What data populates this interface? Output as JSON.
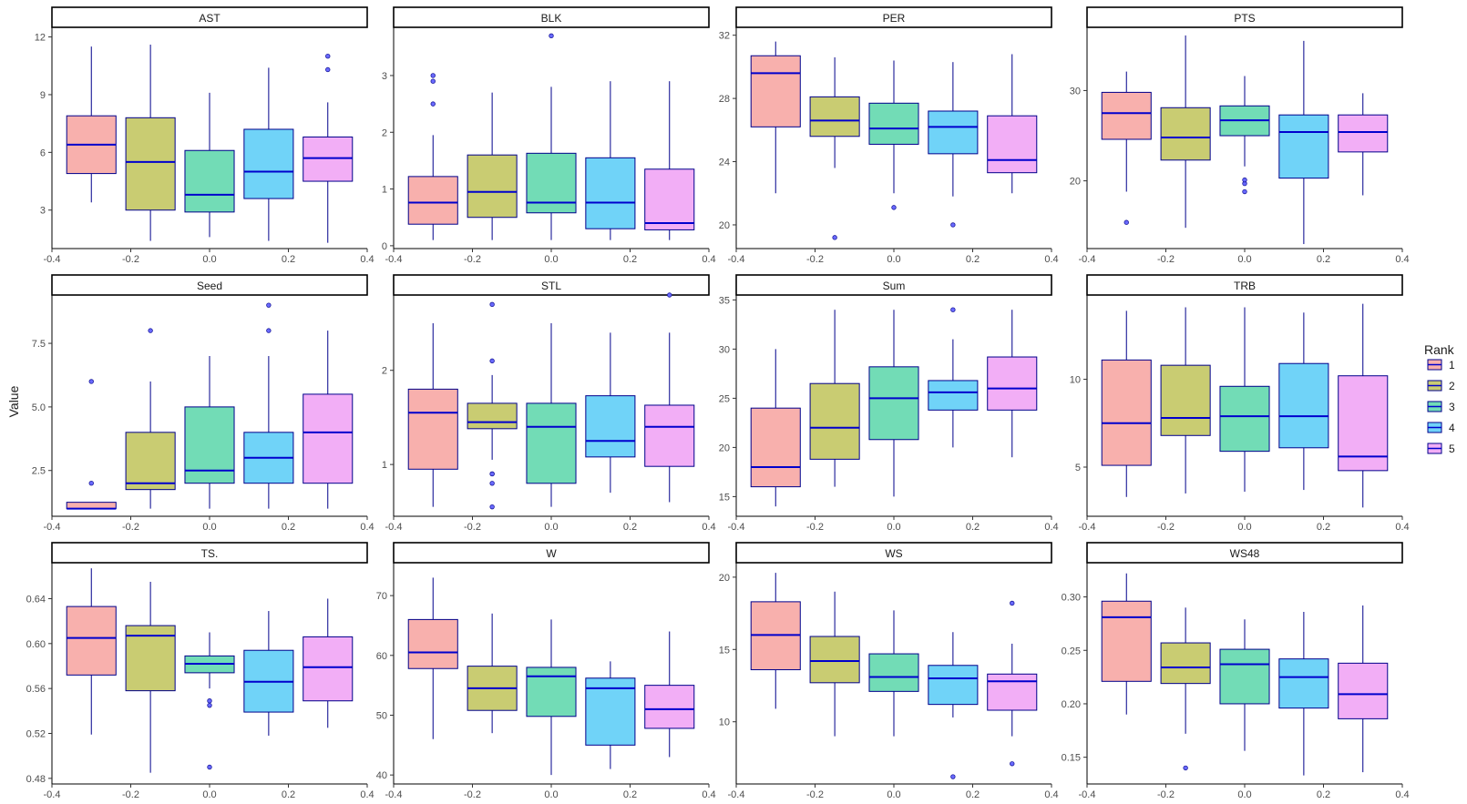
{
  "chart_data": {
    "type": "boxplot",
    "y_label": "Value",
    "x_ticks": [
      "-0.4",
      "-0.2",
      "0.0",
      "0.2",
      "0.4"
    ],
    "x_positions": [
      -0.3,
      -0.15,
      0,
      0.15,
      0.3
    ],
    "xlim": [
      -0.4,
      0.4
    ],
    "legend": {
      "title": "Rank",
      "entries": [
        {
          "label": "1",
          "color": "#f8b0ad"
        },
        {
          "label": "2",
          "color": "#c9cc72"
        },
        {
          "label": "3",
          "color": "#72dcb6"
        },
        {
          "label": "4",
          "color": "#70d3f8"
        },
        {
          "label": "5",
          "color": "#f2aef6"
        }
      ]
    },
    "panels": [
      {
        "title": "AST",
        "ylim": [
          1,
          12.5
        ],
        "ticks": [
          3,
          6,
          9,
          12
        ],
        "tick_labels": [
          "3",
          "6",
          "9",
          "12"
        ],
        "boxes": [
          {
            "min": 3.4,
            "q1": 4.9,
            "median": 6.4,
            "q3": 7.9,
            "max": 11.5,
            "outliers": []
          },
          {
            "min": 1.4,
            "q1": 3.0,
            "median": 5.5,
            "q3": 7.8,
            "max": 11.6,
            "outliers": []
          },
          {
            "min": 1.6,
            "q1": 2.9,
            "median": 3.8,
            "q3": 6.1,
            "max": 9.1,
            "outliers": []
          },
          {
            "min": 1.4,
            "q1": 3.6,
            "median": 5.0,
            "q3": 7.2,
            "max": 10.4,
            "outliers": []
          },
          {
            "min": 1.3,
            "q1": 4.5,
            "median": 5.7,
            "q3": 6.8,
            "max": 8.6,
            "outliers": [
              10.3,
              11.0
            ]
          }
        ]
      },
      {
        "title": "BLK",
        "ylim": [
          -0.05,
          3.85
        ],
        "ticks": [
          0,
          1,
          2,
          3
        ],
        "tick_labels": [
          "0",
          "1",
          "2",
          "3"
        ],
        "boxes": [
          {
            "min": 0.1,
            "q1": 0.38,
            "median": 0.76,
            "q3": 1.22,
            "max": 1.95,
            "outliers": [
              2.5,
              2.9,
              3.0
            ]
          },
          {
            "min": 0.1,
            "q1": 0.5,
            "median": 0.95,
            "q3": 1.6,
            "max": 2.7,
            "outliers": []
          },
          {
            "min": 0.1,
            "q1": 0.58,
            "median": 0.76,
            "q3": 1.63,
            "max": 2.8,
            "outliers": [
              3.7
            ]
          },
          {
            "min": 0.1,
            "q1": 0.3,
            "median": 0.76,
            "q3": 1.55,
            "max": 2.9,
            "outliers": []
          },
          {
            "min": 0.1,
            "q1": 0.28,
            "median": 0.4,
            "q3": 1.35,
            "max": 2.9,
            "outliers": []
          }
        ]
      },
      {
        "title": "PER",
        "ylim": [
          18.5,
          32.5
        ],
        "ticks": [
          20,
          24,
          28,
          32
        ],
        "tick_labels": [
          "20",
          "24",
          "28",
          "32"
        ],
        "boxes": [
          {
            "min": 22.0,
            "q1": 26.2,
            "median": 29.6,
            "q3": 30.7,
            "max": 31.6,
            "outliers": []
          },
          {
            "min": 23.6,
            "q1": 25.6,
            "median": 26.6,
            "q3": 28.1,
            "max": 30.6,
            "outliers": [
              19.2
            ]
          },
          {
            "min": 22.0,
            "q1": 25.1,
            "median": 26.1,
            "q3": 27.7,
            "max": 30.4,
            "outliers": [
              21.1
            ]
          },
          {
            "min": 21.8,
            "q1": 24.5,
            "median": 26.2,
            "q3": 27.2,
            "max": 30.3,
            "outliers": [
              20.0
            ]
          },
          {
            "min": 22.0,
            "q1": 23.3,
            "median": 24.1,
            "q3": 26.9,
            "max": 30.8,
            "outliers": []
          }
        ]
      },
      {
        "title": "PTS",
        "ylim": [
          12.5,
          37
        ],
        "ticks": [
          20,
          30
        ],
        "tick_labels": [
          "20",
          "30"
        ],
        "boxes": [
          {
            "min": 18.8,
            "q1": 24.6,
            "median": 27.5,
            "q3": 29.8,
            "max": 32.1,
            "outliers": [
              15.4
            ]
          },
          {
            "min": 14.8,
            "q1": 22.3,
            "median": 24.8,
            "q3": 28.1,
            "max": 36.1,
            "outliers": []
          },
          {
            "min": 21.6,
            "q1": 25.0,
            "median": 26.7,
            "q3": 28.3,
            "max": 31.6,
            "outliers": [
              18.8,
              19.7,
              20.1
            ]
          },
          {
            "min": 13.0,
            "q1": 20.3,
            "median": 25.4,
            "q3": 27.3,
            "max": 35.5,
            "outliers": []
          },
          {
            "min": 18.4,
            "q1": 23.2,
            "median": 25.4,
            "q3": 27.3,
            "max": 29.7,
            "outliers": []
          }
        ]
      },
      {
        "title": "Seed",
        "ylim": [
          0.7,
          9.4
        ],
        "ticks": [
          2.5,
          5,
          7.5
        ],
        "tick_labels": [
          "2.5",
          "5.0",
          "7.5"
        ],
        "boxes": [
          {
            "min": 1,
            "q1": 1,
            "median": 1,
            "q3": 1.25,
            "max": 1.25,
            "outliers": [
              2,
              6
            ]
          },
          {
            "min": 1,
            "q1": 1.75,
            "median": 2,
            "q3": 4,
            "max": 6,
            "outliers": [
              8
            ]
          },
          {
            "min": 1,
            "q1": 2,
            "median": 2.5,
            "q3": 5,
            "max": 7,
            "outliers": []
          },
          {
            "min": 1,
            "q1": 2,
            "median": 3,
            "q3": 4,
            "max": 7,
            "outliers": [
              8,
              9
            ]
          },
          {
            "min": 1,
            "q1": 2,
            "median": 4,
            "q3": 5.5,
            "max": 8,
            "outliers": []
          }
        ]
      },
      {
        "title": "STL",
        "ylim": [
          0.45,
          2.8
        ],
        "ticks": [
          1,
          2
        ],
        "tick_labels": [
          "1",
          "2"
        ],
        "boxes": [
          {
            "min": 0.55,
            "q1": 0.95,
            "median": 1.55,
            "q3": 1.8,
            "max": 2.5,
            "outliers": []
          },
          {
            "min": 1.05,
            "q1": 1.38,
            "median": 1.45,
            "q3": 1.65,
            "max": 1.95,
            "outliers": [
              0.55,
              0.8,
              0.9,
              0.9,
              2.1,
              2.7
            ]
          },
          {
            "min": 0.55,
            "q1": 0.8,
            "median": 1.4,
            "q3": 1.65,
            "max": 2.5,
            "outliers": []
          },
          {
            "min": 0.7,
            "q1": 1.08,
            "median": 1.25,
            "q3": 1.73,
            "max": 2.4,
            "outliers": []
          },
          {
            "min": 0.6,
            "q1": 0.98,
            "median": 1.4,
            "q3": 1.63,
            "max": 2.4,
            "outliers": [
              2.8
            ]
          }
        ]
      },
      {
        "title": "Sum",
        "ylim": [
          13,
          35.5
        ],
        "ticks": [
          15,
          20,
          25,
          30,
          35
        ],
        "tick_labels": [
          "15",
          "20",
          "25",
          "30",
          "35"
        ],
        "boxes": [
          {
            "min": 14,
            "q1": 16,
            "median": 18,
            "q3": 24,
            "max": 30,
            "outliers": []
          },
          {
            "min": 16,
            "q1": 18.8,
            "median": 22,
            "q3": 26.5,
            "max": 34,
            "outliers": []
          },
          {
            "min": 15,
            "q1": 20.8,
            "median": 25,
            "q3": 28.2,
            "max": 34,
            "outliers": []
          },
          {
            "min": 20,
            "q1": 23.8,
            "median": 25.6,
            "q3": 26.8,
            "max": 31,
            "outliers": [
              34
            ]
          },
          {
            "min": 19,
            "q1": 23.8,
            "median": 26,
            "q3": 29.2,
            "max": 34,
            "outliers": []
          }
        ]
      },
      {
        "title": "TRB",
        "ylim": [
          2.2,
          14.8
        ],
        "ticks": [
          5,
          10
        ],
        "tick_labels": [
          "5",
          "10"
        ],
        "boxes": [
          {
            "min": 3.3,
            "q1": 5.1,
            "median": 7.5,
            "q3": 11.1,
            "max": 13.9,
            "outliers": []
          },
          {
            "min": 3.5,
            "q1": 6.8,
            "median": 7.8,
            "q3": 10.8,
            "max": 14.1,
            "outliers": []
          },
          {
            "min": 3.6,
            "q1": 5.9,
            "median": 7.9,
            "q3": 9.6,
            "max": 14.1,
            "outliers": []
          },
          {
            "min": 3.7,
            "q1": 6.1,
            "median": 7.9,
            "q3": 10.9,
            "max": 13.8,
            "outliers": []
          },
          {
            "min": 2.7,
            "q1": 4.8,
            "median": 5.6,
            "q3": 10.2,
            "max": 14.3,
            "outliers": []
          }
        ]
      },
      {
        "title": "TS.",
        "ylim": [
          0.475,
          0.672
        ],
        "ticks": [
          0.48,
          0.52,
          0.56,
          0.6,
          0.64
        ],
        "tick_labels": [
          "0.48",
          "0.52",
          "0.56",
          "0.60",
          "0.64"
        ],
        "boxes": [
          {
            "min": 0.519,
            "q1": 0.572,
            "median": 0.605,
            "q3": 0.633,
            "max": 0.667,
            "outliers": []
          },
          {
            "min": 0.485,
            "q1": 0.558,
            "median": 0.607,
            "q3": 0.616,
            "max": 0.655,
            "outliers": []
          },
          {
            "min": 0.56,
            "q1": 0.574,
            "median": 0.582,
            "q3": 0.589,
            "max": 0.61,
            "outliers": [
              0.545,
              0.549,
              0.49
            ]
          },
          {
            "min": 0.518,
            "q1": 0.539,
            "median": 0.566,
            "q3": 0.594,
            "max": 0.629,
            "outliers": []
          },
          {
            "min": 0.525,
            "q1": 0.549,
            "median": 0.579,
            "q3": 0.606,
            "max": 0.64,
            "outliers": []
          }
        ]
      },
      {
        "title": "W",
        "ylim": [
          38.5,
          75.5
        ],
        "ticks": [
          40,
          50,
          60,
          70
        ],
        "tick_labels": [
          "40",
          "50",
          "60",
          "70"
        ],
        "boxes": [
          {
            "min": 46,
            "q1": 57.8,
            "median": 60.5,
            "q3": 66,
            "max": 73,
            "outliers": []
          },
          {
            "min": 47,
            "q1": 50.8,
            "median": 54.5,
            "q3": 58.2,
            "max": 67,
            "outliers": []
          },
          {
            "min": 40,
            "q1": 49.8,
            "median": 56.5,
            "q3": 58,
            "max": 66,
            "outliers": []
          },
          {
            "min": 41,
            "q1": 45,
            "median": 54.5,
            "q3": 56.2,
            "max": 59,
            "outliers": []
          },
          {
            "min": 43,
            "q1": 47.8,
            "median": 51,
            "q3": 55,
            "max": 64,
            "outliers": []
          }
        ]
      },
      {
        "title": "WS",
        "ylim": [
          5.7,
          21
        ],
        "ticks": [
          10,
          15,
          20
        ],
        "tick_labels": [
          "10",
          "15",
          "20"
        ],
        "boxes": [
          {
            "min": 10.9,
            "q1": 13.6,
            "median": 16.0,
            "q3": 18.3,
            "max": 20.3,
            "outliers": []
          },
          {
            "min": 9.0,
            "q1": 12.7,
            "median": 14.2,
            "q3": 15.9,
            "max": 19.0,
            "outliers": []
          },
          {
            "min": 9.0,
            "q1": 12.1,
            "median": 13.1,
            "q3": 14.7,
            "max": 17.7,
            "outliers": []
          },
          {
            "min": 10.3,
            "q1": 11.2,
            "median": 13.0,
            "q3": 13.9,
            "max": 16.2,
            "outliers": [
              6.2
            ]
          },
          {
            "min": 9.0,
            "q1": 10.8,
            "median": 12.8,
            "q3": 13.3,
            "max": 15.4,
            "outliers": [
              18.2,
              7.1
            ]
          }
        ]
      },
      {
        "title": "WS48",
        "ylim": [
          0.125,
          0.332
        ],
        "ticks": [
          0.15,
          0.2,
          0.25,
          0.3
        ],
        "tick_labels": [
          "0.15",
          "0.20",
          "0.25",
          "0.30"
        ],
        "boxes": [
          {
            "min": 0.19,
            "q1": 0.221,
            "median": 0.281,
            "q3": 0.296,
            "max": 0.322,
            "outliers": []
          },
          {
            "min": 0.172,
            "q1": 0.219,
            "median": 0.234,
            "q3": 0.257,
            "max": 0.29,
            "outliers": [
              0.14
            ]
          },
          {
            "min": 0.156,
            "q1": 0.2,
            "median": 0.237,
            "q3": 0.251,
            "max": 0.279,
            "outliers": []
          },
          {
            "min": 0.133,
            "q1": 0.196,
            "median": 0.225,
            "q3": 0.242,
            "max": 0.286,
            "outliers": []
          },
          {
            "min": 0.136,
            "q1": 0.186,
            "median": 0.209,
            "q3": 0.238,
            "max": 0.292,
            "outliers": []
          }
        ]
      }
    ]
  }
}
